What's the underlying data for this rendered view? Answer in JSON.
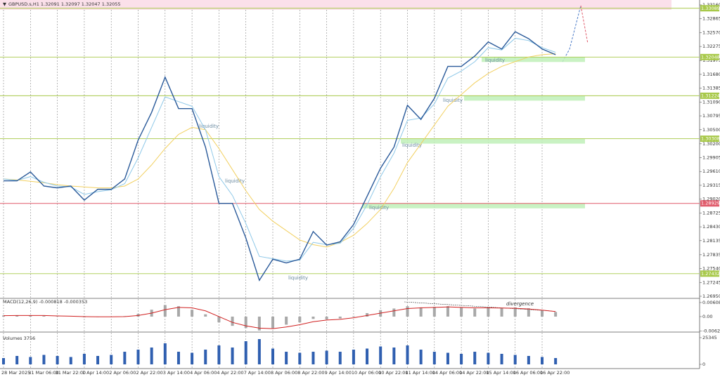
{
  "header": "GBPUSD.s,H1  1.32091 1.32097 1.32047 1.32055",
  "chart_data": [
    {
      "type": "line",
      "categories": [
        "28 Mar 2025",
        null,
        "31 Mar 06:00",
        null,
        "31 Mar 22:00",
        null,
        "1 Apr 14:00",
        null,
        "2 Apr 06:00",
        null,
        "2 Apr 22:00",
        null,
        "3 Apr 14:00",
        null,
        "4 Apr 06:00",
        null,
        "4 Apr 22:00",
        null,
        "7 Apr 14:00",
        null,
        "8 Apr 06:00",
        null,
        "8 Apr 22:00",
        null,
        "9 Apr 14:00",
        null,
        "10 Apr 06:00",
        null,
        "10 Apr 22:00",
        null,
        "11 Apr 14:00",
        null,
        "14 Apr 06:00",
        null,
        "14 Apr 22:00",
        null,
        "15 Apr 14:00",
        null,
        "16 Apr 06:00",
        null,
        "16 Apr 22:00",
        null
      ],
      "series": [
        {
          "color": "#f2d060",
          "values": [
            1.2945,
            1.2943,
            1.294,
            1.2937,
            1.2933,
            1.293,
            1.2928,
            1.2926,
            1.2926,
            1.293,
            1.2945,
            1.2975,
            1.301,
            1.304,
            1.3055,
            1.305,
            1.301,
            1.2965,
            1.292,
            1.288,
            1.2855,
            1.2835,
            1.2815,
            1.2805,
            1.28,
            1.281,
            1.2825,
            1.285,
            1.288,
            1.2925,
            1.298,
            1.302,
            1.306,
            1.31,
            1.3125,
            1.315,
            1.317,
            1.3185,
            1.3195,
            1.3205,
            1.321,
            1.3212
          ]
        },
        {
          "color": "#8ec8e8",
          "values": [
            1.2945,
            1.2942,
            1.295,
            1.2938,
            1.293,
            1.2928,
            1.2912,
            1.2918,
            1.2922,
            1.2935,
            1.299,
            1.3055,
            1.312,
            1.311,
            1.31,
            1.305,
            1.295,
            1.291,
            1.285,
            1.278,
            1.2775,
            1.277,
            1.2772,
            1.281,
            1.2805,
            1.2808,
            1.284,
            1.289,
            1.295,
            1.3,
            1.307,
            1.3075,
            1.3105,
            1.316,
            1.3175,
            1.3195,
            1.3225,
            1.322,
            1.3245,
            1.324,
            1.3225,
            1.3215
          ]
        },
        {
          "color": "#2a5a9a",
          "values": [
            1.2941,
            1.2941,
            1.296,
            1.293,
            1.2926,
            1.293,
            1.29,
            1.2923,
            1.2923,
            1.2945,
            1.3028,
            1.3087,
            1.3162,
            1.3095,
            1.3095,
            1.3013,
            1.2893,
            1.2893,
            1.2819,
            1.2729,
            1.2774,
            1.2766,
            1.2774,
            1.2833,
            1.2804,
            1.2811,
            1.2848,
            1.2908,
            1.2968,
            1.3013,
            1.3102,
            1.3072,
            1.3117,
            1.3185,
            1.3185,
            1.3207,
            1.3237,
            1.3222,
            1.3259,
            1.3244,
            1.3222,
            1.321
          ]
        }
      ],
      "ylim": [
        1.2692,
        1.3322
      ],
      "yticks": [
        {
          "value": 1.3316,
          "label": "1.33160"
        },
        1.32865,
        {
          "value": 1.3257,
          "label": "1.32570"
        },
        1.32275,
        1.31975,
        {
          "value": 1.3168,
          "label": "1.31680"
        },
        1.31385,
        {
          "value": 1.3109,
          "label": "1.31090"
        },
        1.30795,
        {
          "value": 1.305,
          "label": "1.30500"
        },
        {
          "value": 1.302,
          "label": "1.30200"
        },
        1.29905,
        {
          "value": 1.2961,
          "label": "1.29610"
        },
        1.29315,
        {
          "value": 1.2902,
          "label": "1.29020"
        },
        1.28725,
        {
          "value": 1.2843,
          "label": "1.28430"
        },
        1.28135,
        1.27835,
        {
          "value": 1.2754,
          "label": "1.27540"
        },
        1.27245,
        {
          "value": 1.2695,
          "label": "1.26950"
        }
      ],
      "levels": [
        1.33089,
        1.32048,
        1.31224,
        1.30308,
        1.28929,
        1.27432
      ],
      "level_colors": [
        "#a8c94a",
        "#a8c94a",
        "#a8c94a",
        "#a8c94a",
        "#e05a6a",
        "#a8c94a"
      ],
      "annotations": [
        "liquidity",
        "liquidity",
        "liquidity",
        "liquidity",
        "liquidity",
        "liquidity",
        "liquidity"
      ]
    },
    {
      "type": "bar",
      "title": "MACD(12,26,9) -0.000818 -0.000353",
      "values": [
        0.0005,
        0.0005,
        0.0006,
        0.0003,
        0.0001,
        0,
        -0.0003,
        -0.0002,
        -0.0001,
        0.0002,
        0.0012,
        0.003,
        0.005,
        0.0045,
        0.003,
        0.001,
        -0.0025,
        -0.004,
        -0.005,
        -0.006,
        -0.005,
        -0.0035,
        -0.0025,
        -0.001,
        -0.0012,
        -0.0008,
        0.0002,
        0.0015,
        0.0028,
        0.0035,
        0.0045,
        0.004,
        0.0042,
        0.0045,
        0.004,
        0.0035,
        0.0042,
        0.0038,
        0.004,
        0.0036,
        0.0028,
        0.002
      ],
      "color": "#a8a8a8",
      "line": {
        "color": "#d02020",
        "values": [
          0.0004,
          0.0005,
          0.0005,
          0.0005,
          0.0003,
          0.0002,
          0,
          -0.0001,
          -0.0001,
          0,
          0.0005,
          0.0015,
          0.003,
          0.004,
          0.0038,
          0.0025,
          0,
          -0.0025,
          -0.004,
          -0.005,
          -0.0052,
          -0.0045,
          -0.0035,
          -0.0022,
          -0.0015,
          -0.0012,
          -0.0005,
          0.0005,
          0.0015,
          0.0025,
          0.0035,
          0.0038,
          0.004,
          0.0042,
          0.004,
          0.0038,
          0.0038,
          0.0037,
          0.0036,
          0.0033,
          0.0028,
          0.0022
        ]
      },
      "ylim": [
        -0.0067,
        0.0079
      ],
      "yticks": [
        0.006088,
        {
          "value": 0,
          "label": "0.00"
        },
        -0.006255
      ],
      "annotation": "divergence"
    },
    {
      "type": "bar",
      "title": "Volumes 3756",
      "values": [
        6000,
        8000,
        7000,
        9000,
        8000,
        7000,
        10000,
        8000,
        9000,
        12000,
        14000,
        16000,
        20000,
        12000,
        11000,
        14000,
        18000,
        16000,
        22000,
        24000,
        15000,
        12000,
        11000,
        12000,
        13000,
        12000,
        14000,
        15000,
        17000,
        16000,
        18000,
        14000,
        12000,
        11000,
        10000,
        12000,
        11000,
        10000,
        9000,
        8000,
        7000,
        6000
      ],
      "color": "#2f5fb0",
      "ylim": [
        0,
        28000
      ],
      "yticks": [
        25345,
        0
      ]
    }
  ]
}
